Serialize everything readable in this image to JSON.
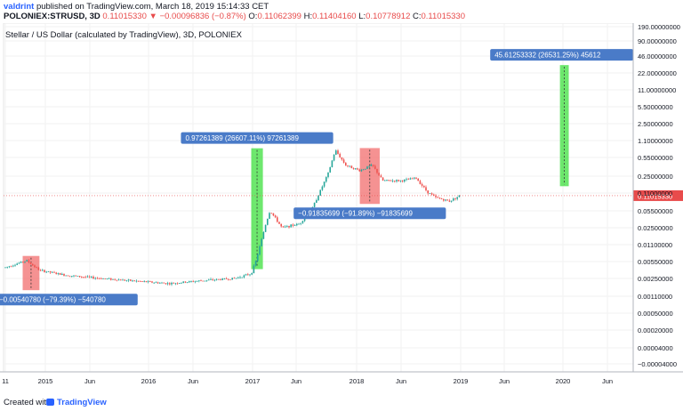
{
  "header": {
    "author": "valdrint",
    "published": "published on TradingView.com, March 18, 2019 15:14:33 CET",
    "symbol": "POLONIEX:STRUSD, 3D",
    "last": "0.11015330",
    "change": "▼ −0.00096836 (−0.87%)",
    "open": "0.11062399",
    "high": "0.11404160",
    "low": "0.10778912",
    "close": "0.11015330",
    "o_label": "O:",
    "h_label": "H:",
    "l_label": "L:",
    "c_label": "C:"
  },
  "footer": {
    "created": "Created with",
    "brand": "TradingView"
  },
  "colors": {
    "up": "#26a69a",
    "down": "#ef5350",
    "label_bg": "#4a7bc8",
    "price_tag": "#e84b4b",
    "green_box": "#3ee03e",
    "red_box": "#f26d6d"
  },
  "chart_data": {
    "type": "candlestick",
    "title": "Stellar / US Dollar (calculated by TradingView), 3D, POLONIEX",
    "y_scale": "log",
    "y_ticks": [
      "190.00000000",
      "90.00000000",
      "46.00000000",
      "22.00000000",
      "11.00000000",
      "5.50000000",
      "2.50000000",
      "1.10000000",
      "0.55000000",
      "0.25000000",
      "0.11000000",
      "0.05500000",
      "0.02500000",
      "0.01100000",
      "0.00550000",
      "0.00250000",
      "0.00110000",
      "0.00050000",
      "0.00020000",
      "0.00004000",
      "−0.00004000"
    ],
    "x_ticks": [
      "11",
      "2015",
      "Jun",
      "2016",
      "Jun",
      "2017",
      "Jun",
      "2018",
      "Jun",
      "2019",
      "Jun",
      "2020",
      "Jun"
    ],
    "current_price_label": "0.11015330",
    "series_points": [
      [
        "2014-11-01",
        0.004
      ],
      [
        "2015-01-15",
        0.0055
      ],
      [
        "2015-03-01",
        0.0035
      ],
      [
        "2015-06-01",
        0.0028
      ],
      [
        "2015-09-01",
        0.0025
      ],
      [
        "2016-01-01",
        0.0022
      ],
      [
        "2016-06-01",
        0.0019
      ],
      [
        "2016-10-01",
        0.0022
      ],
      [
        "2017-01-15",
        0.0024
      ],
      [
        "2017-03-15",
        0.003
      ],
      [
        "2017-04-01",
        0.0055
      ],
      [
        "2017-05-05",
        0.03
      ],
      [
        "2017-05-20",
        0.055
      ],
      [
        "2017-07-01",
        0.025
      ],
      [
        "2017-09-01",
        0.03
      ],
      [
        "2017-10-15",
        0.06
      ],
      [
        "2017-12-10",
        0.3
      ],
      [
        "2018-01-05",
        0.9
      ],
      [
        "2018-02-10",
        0.45
      ],
      [
        "2018-04-01",
        0.35
      ],
      [
        "2018-05-15",
        0.45
      ],
      [
        "2018-06-20",
        0.22
      ],
      [
        "2018-09-01",
        0.22
      ],
      [
        "2018-10-15",
        0.25
      ],
      [
        "2018-11-25",
        0.13
      ],
      [
        "2018-12-25",
        0.1
      ],
      [
        "2019-02-10",
        0.085
      ],
      [
        "2019-03-18",
        0.11
      ]
    ],
    "measurements": [
      {
        "kind": "drop",
        "label": "−0.00540780 (−79.39%) −540780",
        "from": [
          "2015-01-01",
          0.0068
        ],
        "to": [
          "2015-03-01",
          0.0014
        ]
      },
      {
        "kind": "rise",
        "label": "0.97261389 (26607.11%) 97261389",
        "from": [
          "2017-03-15",
          0.0037
        ],
        "to": [
          "2017-04-25",
          0.98
        ]
      },
      {
        "kind": "drop",
        "label": "−0.91835699 (−91.89%) −91835699",
        "from": [
          "2018-04-01",
          0.99
        ],
        "to": [
          "2018-06-10",
          0.075
        ]
      },
      {
        "kind": "rise",
        "label": "45.61253332 (26531.25%) 45612",
        "from": [
          "2020-03-05",
          0.17
        ],
        "to": [
          "2020-04-05",
          45.6
        ]
      }
    ]
  }
}
